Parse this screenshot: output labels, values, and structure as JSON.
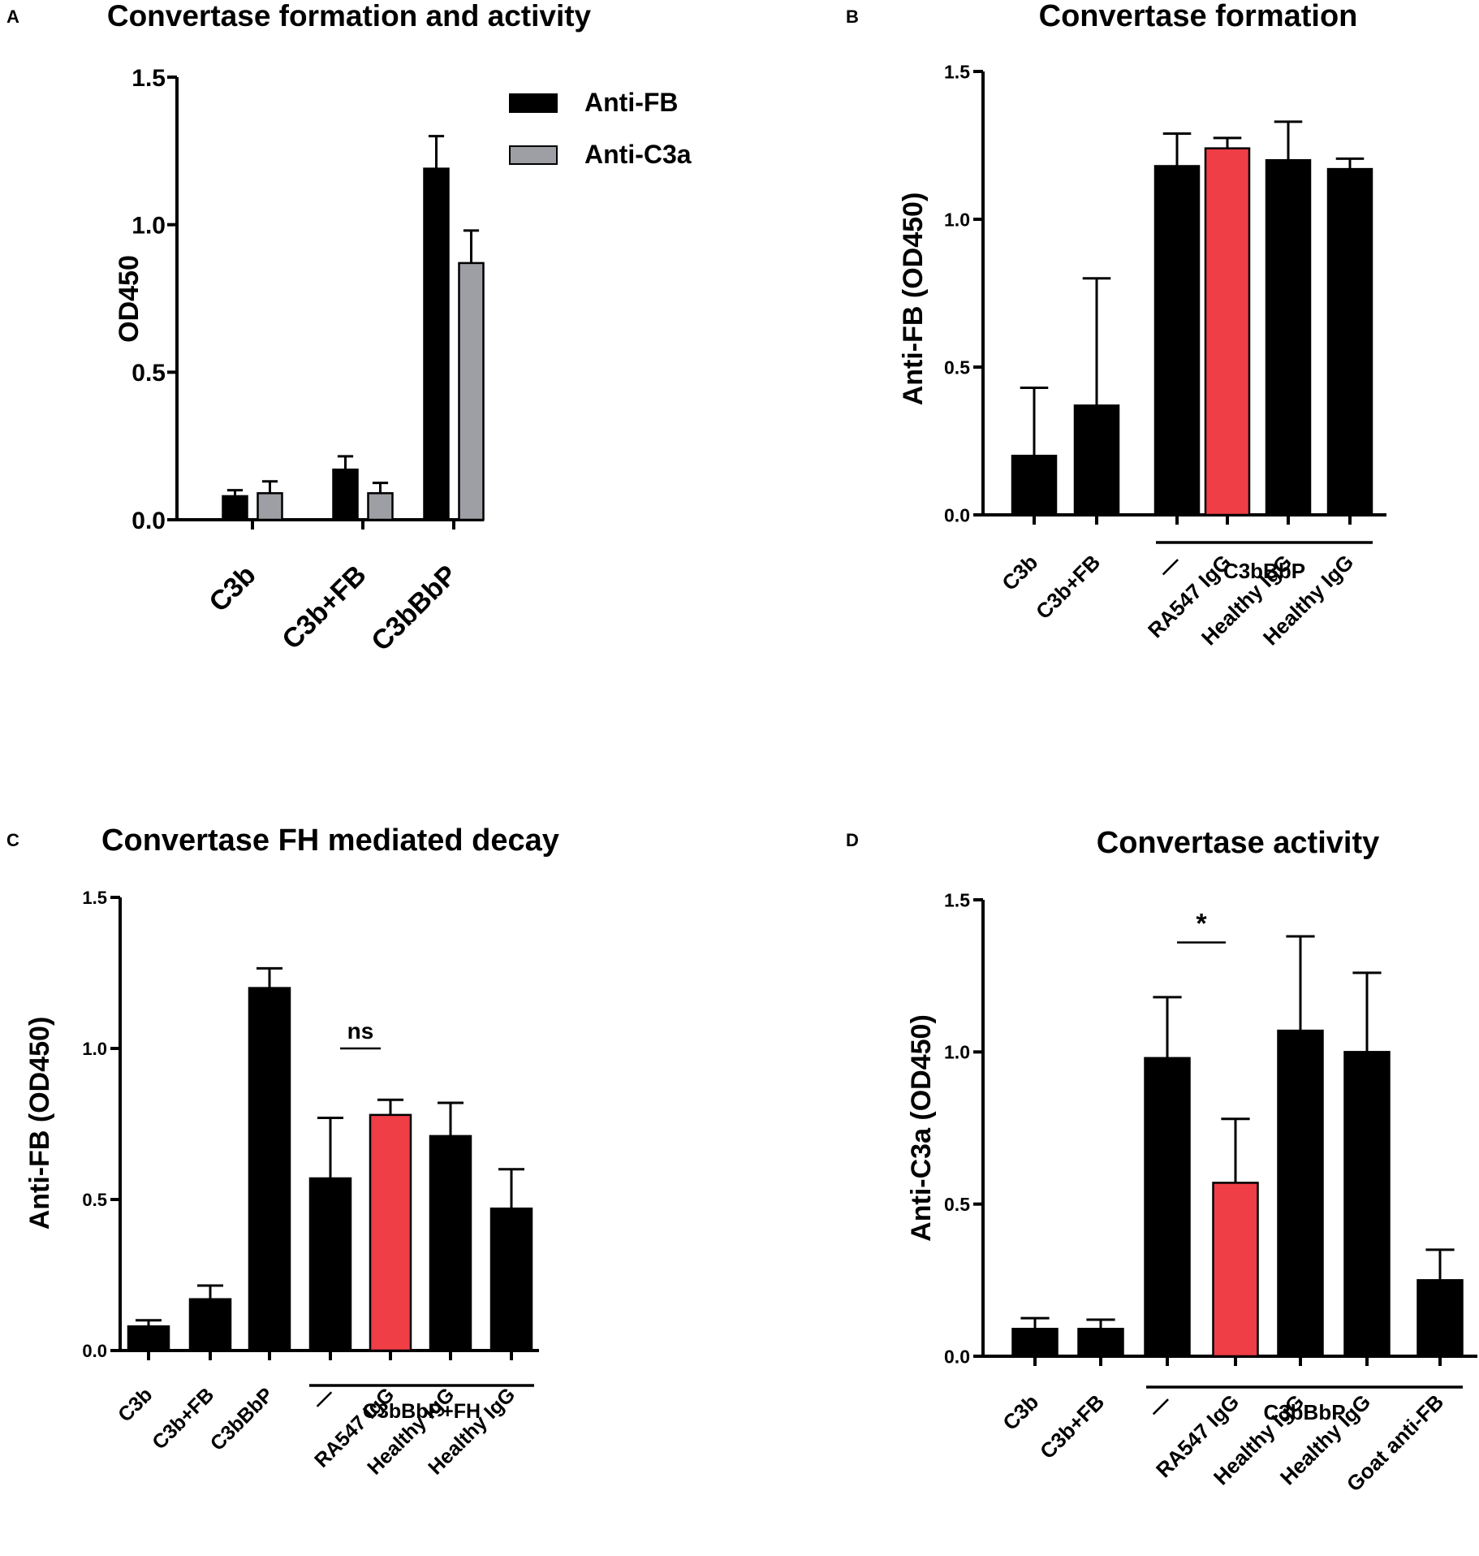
{
  "colors": {
    "black_bar": "#000000",
    "gray_bar": "#9d9fa4",
    "red_bar": "#ef3e46",
    "axis": "#000000"
  },
  "chart_data": [
    {
      "panel": "A",
      "type": "bar",
      "title": "Convertase formation and activity",
      "ylabel": "OD450",
      "xlabel": "",
      "ylim": [
        0,
        1.5
      ],
      "yticks": [
        "0.0",
        "0.5",
        "1.0",
        "1.5"
      ],
      "categories": [
        "C3b",
        "C3b+FB",
        "C3bBbP"
      ],
      "series": [
        {
          "name": "Anti-FB",
          "color": "#000000",
          "values": [
            0.08,
            0.17,
            1.19
          ],
          "errors": [
            0.02,
            0.045,
            0.11
          ]
        },
        {
          "name": "Anti-C3a",
          "color": "#9d9fa4",
          "values": [
            0.09,
            0.09,
            0.87
          ],
          "errors": [
            0.04,
            0.035,
            0.11
          ]
        }
      ],
      "legend": "top-right"
    },
    {
      "panel": "B",
      "type": "bar",
      "title": "Convertase formation",
      "ylabel": "Anti-FB  (OD450)",
      "xlabel": "",
      "ylim": [
        0,
        1.5
      ],
      "yticks": [
        "0.0",
        "0.5",
        "1.0",
        "1.5"
      ],
      "categories": [
        "C3b",
        "C3b+FB",
        "—",
        "RA547 IgG",
        "Healthy IgG",
        "Healthy IgG"
      ],
      "values": [
        0.2,
        0.37,
        1.18,
        1.24,
        1.2,
        1.17
      ],
      "errors": [
        0.23,
        0.43,
        0.11,
        0.035,
        0.13,
        0.035
      ],
      "colors": [
        "#000000",
        "#000000",
        "#000000",
        "#ef3e46",
        "#000000",
        "#000000"
      ],
      "group_label": "C3bBbP",
      "group_span": [
        2,
        5
      ],
      "annotations": []
    },
    {
      "panel": "C",
      "type": "bar",
      "title": "Convertase FH mediated decay",
      "ylabel": "Anti-FB (OD450)",
      "xlabel": "",
      "ylim": [
        0,
        1.5
      ],
      "yticks": [
        "0.0",
        "0.5",
        "1.0",
        "1.5"
      ],
      "categories": [
        "C3b",
        "C3b+FB",
        "C3bBbP",
        "—",
        "RA547 IgG",
        "Healthy IgG",
        "Healthy IgG"
      ],
      "values": [
        0.08,
        0.17,
        1.2,
        0.57,
        0.78,
        0.71,
        0.47
      ],
      "errors": [
        0.02,
        0.045,
        0.065,
        0.2,
        0.05,
        0.11,
        0.13
      ],
      "colors": [
        "#000000",
        "#000000",
        "#000000",
        "#000000",
        "#ef3e46",
        "#000000",
        "#000000"
      ],
      "group_label": "C3bBbP+FH",
      "group_span": [
        3,
        6
      ],
      "annotations": [
        {
          "text": "ns",
          "from": 3,
          "to": 4,
          "y": 1.0
        }
      ]
    },
    {
      "panel": "D",
      "type": "bar",
      "title": "Convertase activity",
      "ylabel": "Anti-C3a (OD450)",
      "xlabel": "",
      "ylim": [
        0,
        1.5
      ],
      "yticks": [
        "0.0",
        "0.5",
        "1.0",
        "1.5"
      ],
      "categories": [
        "C3b",
        "C3b+FB",
        "—",
        "RA547 IgG",
        "Healthy IgG",
        "Healthy IgG",
        "Goat anti-FB"
      ],
      "values": [
        0.09,
        0.09,
        0.98,
        0.57,
        1.07,
        1.0,
        0.25
      ],
      "errors": [
        0.035,
        0.03,
        0.2,
        0.21,
        0.31,
        0.26,
        0.1
      ],
      "colors": [
        "#000000",
        "#000000",
        "#000000",
        "#ef3e46",
        "#000000",
        "#000000",
        "#000000"
      ],
      "group_label": "C3bBbP",
      "group_span": [
        2,
        6
      ],
      "annotations": [
        {
          "text": "*",
          "from": 2,
          "to": 3,
          "y": 1.36
        }
      ]
    }
  ]
}
